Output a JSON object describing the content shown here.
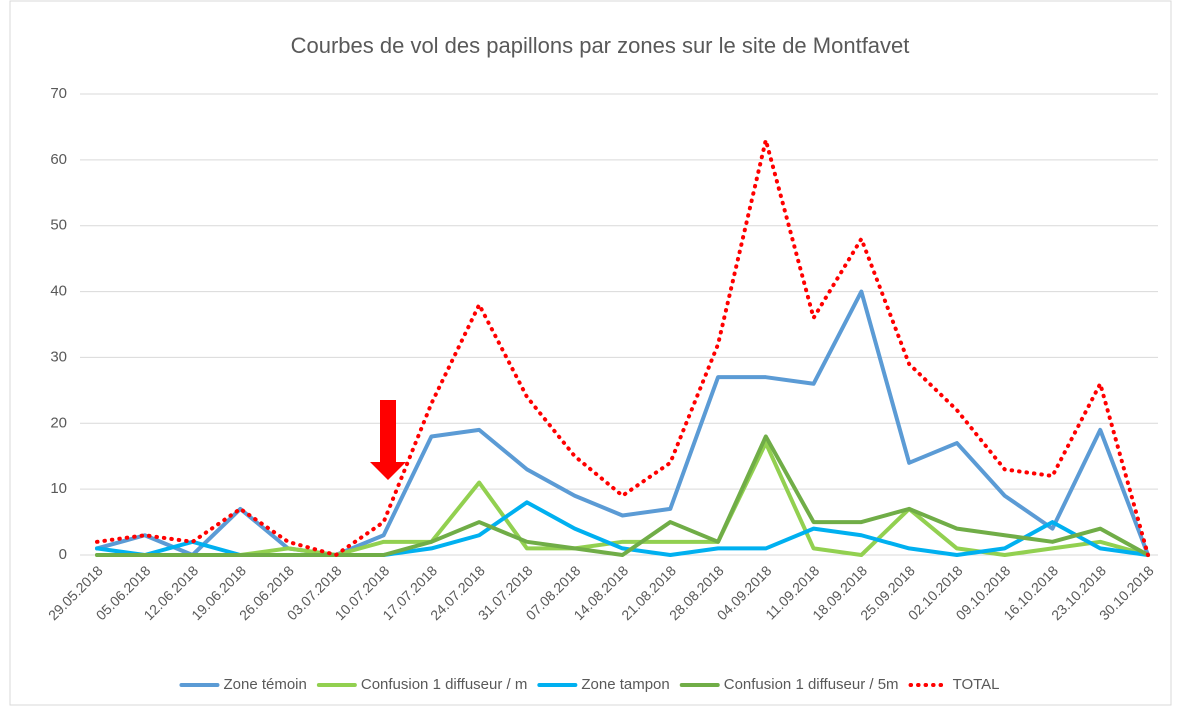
{
  "chart_data": {
    "type": "line",
    "title": "Courbes de vol des papillons par zones sur le site de Montfavet",
    "categories": [
      "29.05.2018",
      "05.06.2018",
      "12.06.2018",
      "19.06.2018",
      "26.06.2018",
      "03.07.2018",
      "10.07.2018",
      "17.07.2018",
      "24.07.2018",
      "31.07.2018",
      "07.08.2018",
      "14.08.2018",
      "21.08.2018",
      "28.08.2018",
      "04.09.2018",
      "11.09.2018",
      "18.09.2018",
      "25.09.2018",
      "02.10.2018",
      "09.10.2018",
      "16.10.2018",
      "23.10.2018",
      "30.10.2018"
    ],
    "series": [
      {
        "name": "Zone témoin",
        "color": "#5b9bd5",
        "line_style": "solid",
        "values": [
          1,
          3,
          0,
          7,
          1,
          0,
          3,
          18,
          19,
          13,
          9,
          6,
          7,
          27,
          27,
          26,
          40,
          14,
          17,
          9,
          4,
          19,
          0
        ]
      },
      {
        "name": "Confusion 1 diffuseur / m",
        "color": "#92d050",
        "line_style": "solid",
        "values": [
          0,
          0,
          0,
          0,
          1,
          0,
          2,
          2,
          11,
          1,
          1,
          2,
          2,
          2,
          17,
          1,
          0,
          7,
          1,
          0,
          1,
          2,
          0
        ]
      },
      {
        "name": "Zone tampon",
        "color": "#00b0f0",
        "line_style": "solid",
        "values": [
          1,
          0,
          2,
          0,
          0,
          0,
          0,
          1,
          3,
          8,
          4,
          1,
          0,
          1,
          1,
          4,
          3,
          1,
          0,
          1,
          5,
          1,
          0
        ]
      },
      {
        "name": "Confusion 1 diffuseur / 5m",
        "color": "#70ad47",
        "line_style": "solid",
        "values": [
          0,
          0,
          0,
          0,
          0,
          0,
          0,
          2,
          5,
          2,
          1,
          0,
          5,
          2,
          18,
          5,
          5,
          7,
          4,
          3,
          2,
          4,
          0
        ]
      },
      {
        "name": "TOTAL",
        "color": "#ff0000",
        "line_style": "dotted",
        "values": [
          2,
          3,
          2,
          7,
          2,
          0,
          5,
          23,
          38,
          24,
          15,
          9,
          14,
          32,
          63,
          36,
          48,
          29,
          22,
          13,
          12,
          26,
          0
        ]
      }
    ],
    "ylim": [
      0,
      70
    ],
    "yticks": [
      0,
      10,
      20,
      30,
      40,
      50,
      60,
      70
    ],
    "grid": true,
    "legend": "bottom"
  }
}
